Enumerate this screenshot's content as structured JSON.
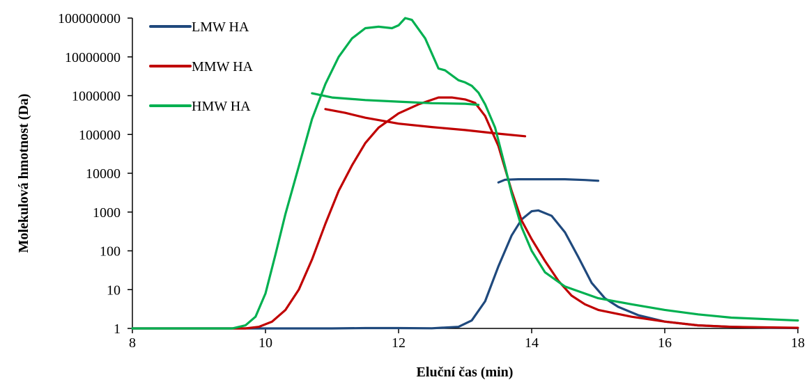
{
  "chart_data": {
    "type": "line",
    "xlabel": "Eluční čas (min)",
    "ylabel": "Molekulová hmotnost (Da)",
    "xlim": [
      8,
      18
    ],
    "ylim": [
      1,
      100000000
    ],
    "y_scale": "log",
    "x_ticks": [
      8,
      10,
      12,
      14,
      16,
      18
    ],
    "x_tick_labels": [
      "8",
      "10",
      "12",
      "14",
      "16",
      "18"
    ],
    "y_ticks": [
      1,
      10,
      100,
      1000,
      10000,
      100000,
      1000000,
      10000000,
      100000000
    ],
    "y_tick_labels": [
      "1",
      "10",
      "100",
      "1000",
      "10000",
      "100000",
      "1000000",
      "10000000",
      "100000000"
    ],
    "grid": false,
    "legend_position": "top-left",
    "series": [
      {
        "name": "LMW HA",
        "color": "#1F497D",
        "segments": [
          [
            [
              8,
              1
            ],
            [
              9,
              1
            ],
            [
              10,
              1
            ],
            [
              11,
              1
            ],
            [
              11.5,
              1.02
            ],
            [
              12,
              1.02
            ],
            [
              12.5,
              1.01
            ],
            [
              12.9,
              1.1
            ],
            [
              13.1,
              1.6
            ],
            [
              13.3,
              5
            ],
            [
              13.5,
              40
            ],
            [
              13.7,
              250
            ],
            [
              13.85,
              650
            ],
            [
              14,
              1050
            ],
            [
              14.1,
              1100
            ],
            [
              14.3,
              800
            ],
            [
              14.5,
              300
            ],
            [
              14.7,
              70
            ],
            [
              14.9,
              15
            ],
            [
              15.1,
              6
            ],
            [
              15.3,
              3.6
            ],
            [
              15.6,
              2.2
            ],
            [
              16,
              1.5
            ],
            [
              16.5,
              1.2
            ],
            [
              17,
              1.1
            ],
            [
              17.5,
              1.05
            ],
            [
              18,
              1.02
            ]
          ],
          [
            [
              13.5,
              5800
            ],
            [
              13.6,
              6800
            ],
            [
              13.8,
              7000
            ],
            [
              14,
              7000
            ],
            [
              14.5,
              7000
            ],
            [
              14.8,
              6700
            ],
            [
              15,
              6400
            ]
          ]
        ]
      },
      {
        "name": "MMW HA",
        "color": "#C00000",
        "segments": [
          [
            [
              8,
              1
            ],
            [
              9,
              1
            ],
            [
              9.7,
              1
            ],
            [
              9.9,
              1.1
            ],
            [
              10.1,
              1.5
            ],
            [
              10.3,
              3
            ],
            [
              10.5,
              10
            ],
            [
              10.7,
              60
            ],
            [
              10.9,
              500
            ],
            [
              11.1,
              3500
            ],
            [
              11.3,
              16000
            ],
            [
              11.5,
              60000
            ],
            [
              11.7,
              150000
            ],
            [
              12,
              350000
            ],
            [
              12.3,
              600000
            ],
            [
              12.6,
              900000
            ],
            [
              12.8,
              900000
            ],
            [
              13,
              800000
            ],
            [
              13.15,
              650000
            ],
            [
              13.3,
              300000
            ],
            [
              13.5,
              50000
            ],
            [
              13.7,
              3500
            ],
            [
              13.85,
              600
            ],
            [
              14,
              200
            ],
            [
              14.2,
              55
            ],
            [
              14.4,
              17
            ],
            [
              14.6,
              7
            ],
            [
              14.8,
              4.2
            ],
            [
              15,
              3
            ],
            [
              15.5,
              2
            ],
            [
              16,
              1.5
            ],
            [
              16.5,
              1.2
            ],
            [
              17,
              1.1
            ],
            [
              18,
              1.04
            ]
          ],
          [
            [
              10.9,
              450000
            ],
            [
              11.2,
              360000
            ],
            [
              11.5,
              270000
            ],
            [
              12,
              190000
            ],
            [
              12.5,
              155000
            ],
            [
              13,
              130000
            ],
            [
              13.5,
              105000
            ],
            [
              13.9,
              90000
            ]
          ]
        ]
      },
      {
        "name": "HMW HA",
        "color": "#00B050",
        "segments": [
          [
            [
              8,
              1
            ],
            [
              9,
              1
            ],
            [
              9.5,
              1
            ],
            [
              9.7,
              1.2
            ],
            [
              9.85,
              2
            ],
            [
              10,
              8
            ],
            [
              10.15,
              80
            ],
            [
              10.3,
              900
            ],
            [
              10.5,
              15000
            ],
            [
              10.7,
              250000
            ],
            [
              10.9,
              2000000
            ],
            [
              11.1,
              10000000
            ],
            [
              11.3,
              30000000
            ],
            [
              11.5,
              55000000
            ],
            [
              11.7,
              60000000
            ],
            [
              11.9,
              55000000
            ],
            [
              12,
              65000000
            ],
            [
              12.1,
              100000000
            ],
            [
              12.2,
              90000000
            ],
            [
              12.4,
              30000000
            ],
            [
              12.6,
              5000000
            ],
            [
              12.7,
              4500000
            ],
            [
              12.9,
              2500000
            ],
            [
              13,
              2200000
            ],
            [
              13.1,
              1800000
            ],
            [
              13.2,
              1200000
            ],
            [
              13.3,
              600000
            ],
            [
              13.45,
              150000
            ],
            [
              13.6,
              15000
            ],
            [
              13.7,
              3000
            ],
            [
              13.85,
              400
            ],
            [
              14,
              100
            ],
            [
              14.2,
              28
            ],
            [
              14.5,
              12
            ],
            [
              15,
              6
            ],
            [
              15.5,
              4.2
            ],
            [
              16,
              3
            ],
            [
              16.5,
              2.3
            ],
            [
              17,
              1.9
            ],
            [
              18,
              1.6
            ]
          ],
          [
            [
              10.7,
              1150000
            ],
            [
              11,
              900000
            ],
            [
              11.5,
              770000
            ],
            [
              12,
              700000
            ],
            [
              12.5,
              640000
            ],
            [
              13,
              620000
            ],
            [
              13.2,
              580000
            ]
          ]
        ]
      }
    ]
  }
}
